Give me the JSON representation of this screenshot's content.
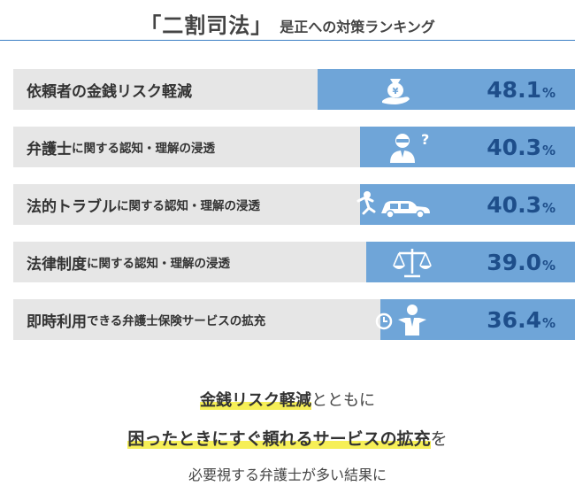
{
  "heading": {
    "bracket_title": "「二割司法」",
    "subtitle": "是正への対策ランキング"
  },
  "chart_data": {
    "type": "bar",
    "orientation": "horizontal",
    "unit": "%",
    "categories": [
      "依頼者の金銭リスク軽減",
      "弁護士に関する認知・理解の浸透",
      "法的トラブルに関する認知・理解の浸透",
      "法律制度に関する認知・理解の浸透",
      "即時利用できる弁護士保険サービスの拡充"
    ],
    "values": [
      48.1,
      40.3,
      40.3,
      39.0,
      36.4
    ],
    "value_labels": [
      "48.1",
      "40.3",
      "40.3",
      "39.0",
      "36.4"
    ],
    "bar_color": "#6fa5d8",
    "track_color": "#e6e6e6",
    "value_color": "#1e4e8a"
  },
  "rows": [
    {
      "label_big": "依頼者の金銭リスク軽減",
      "label_small": "",
      "icon": "money-bag-hand-icon"
    },
    {
      "label_big": "弁護士",
      "label_small": "に関する認知・理解の浸透",
      "icon": "lawyer-question-icon"
    },
    {
      "label_big": "法的トラブル",
      "label_small": "に関する認知・理解の浸透",
      "icon": "car-accident-icon"
    },
    {
      "label_big": "法律制度",
      "label_small": "に関する認知・理解の浸透",
      "icon": "scales-icon"
    },
    {
      "label_big": "即時利用",
      "label_small": "できる弁護士保険サービスの拡充",
      "icon": "clock-person-icon"
    }
  ],
  "percent_unit": "%",
  "summary": {
    "line1_highlight": "金銭リスク軽減",
    "line1_rest": "とともに",
    "line2_highlight": "困ったときにすぐ頼れるサービスの拡充",
    "line2_rest": "を",
    "line3": "必要視する弁護士が多い結果に",
    "highlight_color": "#f6ef57"
  }
}
